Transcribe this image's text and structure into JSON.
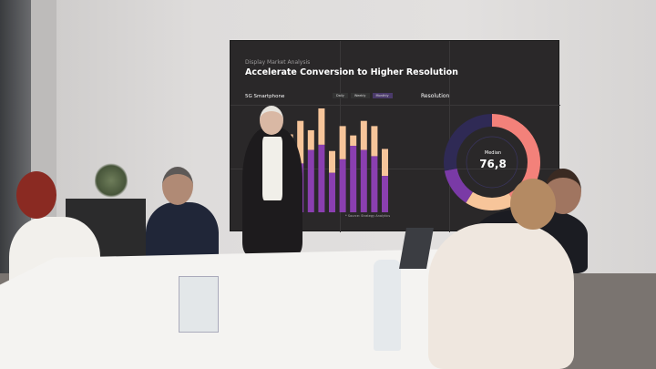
{
  "screen": {
    "subtitle": "Display Market Analysis",
    "title": "Accelerate Conversion to Higher Resolution",
    "bar_section_title": "5G Smartphone",
    "tabs": [
      {
        "label": "Daily",
        "active": false
      },
      {
        "label": "Weekly",
        "active": false
      },
      {
        "label": "Monthly",
        "active": true
      }
    ],
    "donut_section_title": "Resolution",
    "median_label": "Median",
    "median_value": "76,8",
    "source": "* Source: Strategy Analytics"
  },
  "colors": {
    "bar_top": "#f7c59a",
    "bar_bottom": "#8a3fb0",
    "donut_salmon": "#f3817a",
    "donut_peach": "#f7c59a",
    "donut_purple": "#7a3aa6",
    "donut_navy": "#2f2a55"
  },
  "bars": {
    "totals": [
      80,
      75,
      88,
      79,
      100,
      59,
      83,
      74,
      88,
      83,
      61
    ],
    "lower": [
      45,
      50,
      47,
      60,
      65,
      38,
      51,
      64,
      60,
      54,
      35
    ]
  },
  "donut": [
    {
      "color": "#f3817a",
      "share": 42
    },
    {
      "color": "#f7c59a",
      "share": 17
    },
    {
      "color": "#7a3aa6",
      "share": 13
    },
    {
      "color": "#2f2a55",
      "share": 28
    }
  ]
}
